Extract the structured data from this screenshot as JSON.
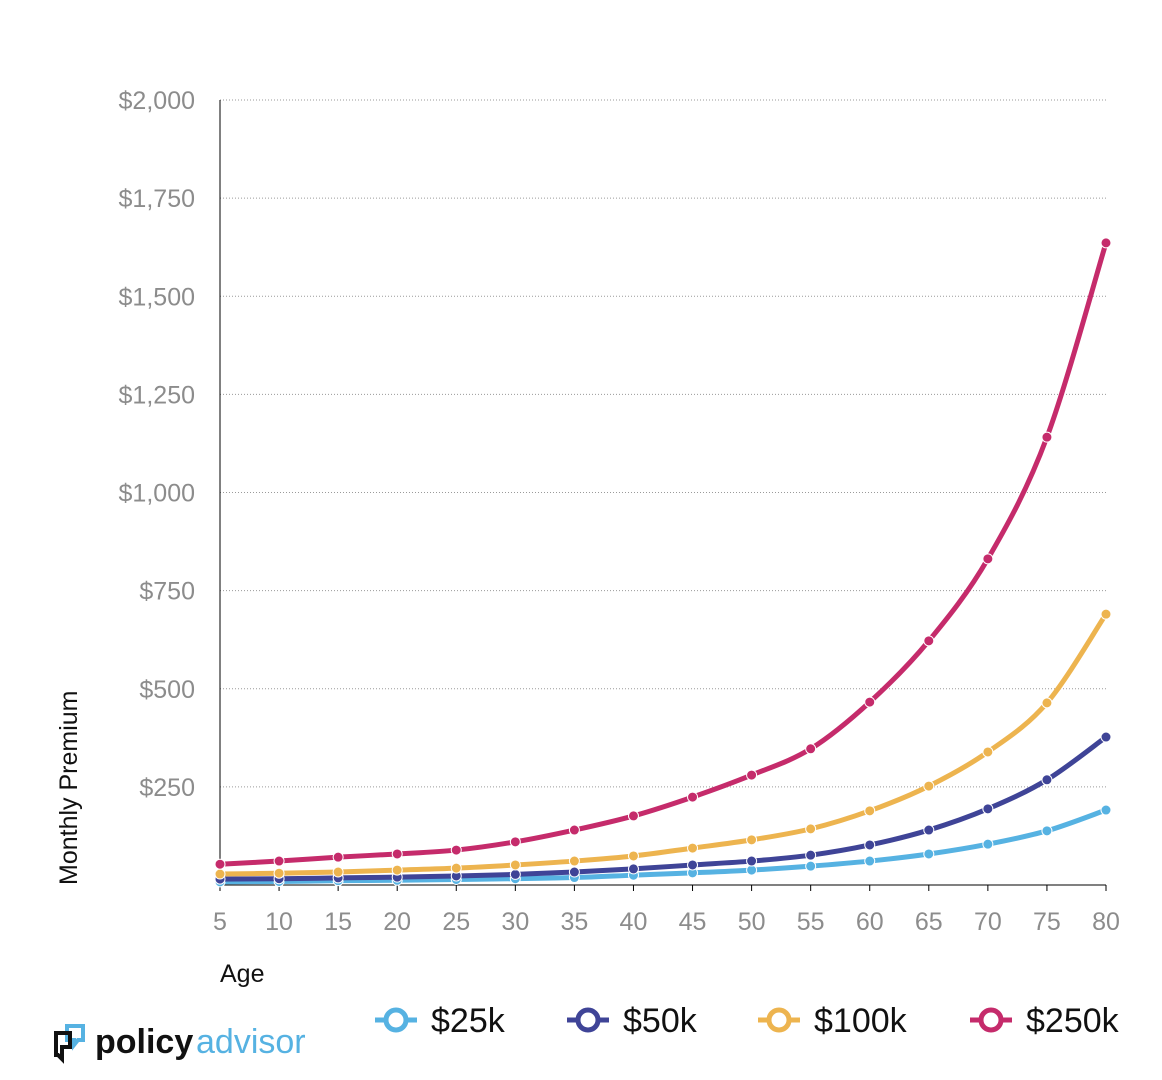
{
  "chart_data": {
    "type": "line",
    "title": "",
    "xlabel": "Age",
    "ylabel": "Monthly Premium",
    "x": [
      5,
      10,
      15,
      20,
      25,
      30,
      35,
      40,
      45,
      50,
      55,
      60,
      65,
      70,
      75,
      80
    ],
    "ylim": [
      0,
      2000
    ],
    "yticks": [
      250,
      500,
      750,
      1000,
      1250,
      1500,
      1750,
      2000
    ],
    "ytick_labels": [
      "$250",
      "$500",
      "$750",
      "$1,000",
      "$1,250",
      "$1,500",
      "$1,750",
      "$2,000"
    ],
    "xtick_labels": [
      "5",
      "10",
      "15",
      "20",
      "25",
      "30",
      "35",
      "40",
      "45",
      "50",
      "55",
      "60",
      "65",
      "70",
      "75",
      "80"
    ],
    "grid": "horizontal dotted",
    "legend_position": "bottom",
    "series": [
      {
        "name": "$25k",
        "color": "#56b2e2",
        "values": [
          8,
          9,
          11,
          12,
          14,
          16,
          19,
          25,
          31,
          38,
          48,
          61,
          79,
          104,
          138,
          191
        ]
      },
      {
        "name": "$50k",
        "color": "#3f4497",
        "values": [
          15,
          16,
          18,
          20,
          23,
          27,
          33,
          41,
          51,
          61,
          76,
          102,
          140,
          194,
          268,
          377
        ]
      },
      {
        "name": "$100k",
        "color": "#edb44f",
        "values": [
          28,
          30,
          33,
          38,
          43,
          51,
          61,
          74,
          94,
          115,
          143,
          189,
          252,
          339,
          464,
          690
        ]
      },
      {
        "name": "$250k",
        "color": "#c52b6b",
        "values": [
          53,
          61,
          71,
          79,
          89,
          110,
          140,
          176,
          224,
          280,
          347,
          466,
          622,
          831,
          1141,
          1636
        ]
      }
    ]
  },
  "logo": {
    "part1": "policy",
    "part2": "advisor"
  }
}
